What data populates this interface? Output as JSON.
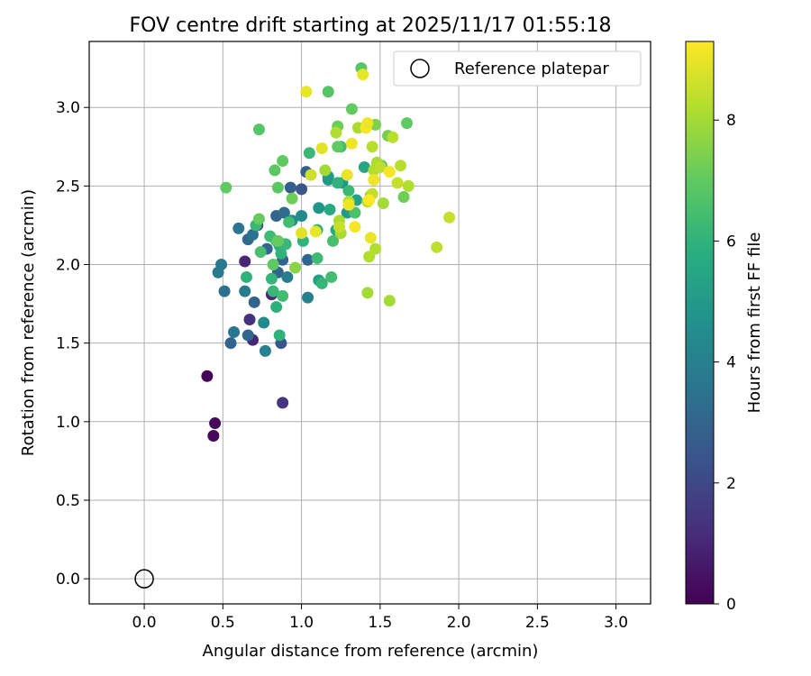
{
  "chart_data": {
    "type": "scatter",
    "title": "FOV centre drift starting at 2025/11/17 01:55:18",
    "xlabel": "Angular distance from reference (arcmin)",
    "ylabel": "Rotation from reference (arcmin)",
    "xlim": [
      -0.35,
      3.22
    ],
    "ylim": [
      -0.16,
      3.42
    ],
    "xticks": [
      0.0,
      0.5,
      1.0,
      1.5,
      2.0,
      2.5,
      3.0
    ],
    "yticks": [
      0.0,
      0.5,
      1.0,
      1.5,
      2.0,
      2.5,
      3.0
    ],
    "xtick_labels": [
      "0.0",
      "0.5",
      "1.0",
      "1.5",
      "2.0",
      "2.5",
      "3.0"
    ],
    "ytick_labels": [
      "0.0",
      "0.5",
      "1.0",
      "1.5",
      "2.0",
      "2.5",
      "3.0"
    ],
    "grid": true,
    "legend": {
      "position": "upper-right",
      "entries": [
        "Reference platepar"
      ]
    },
    "reference": {
      "label": "Reference platepar",
      "x": 0.0,
      "y": 0.0,
      "marker": "open-circle"
    },
    "colorbar": {
      "label": "Hours from first FF file",
      "colormap": "viridis",
      "range": [
        0,
        9.3
      ],
      "ticks": [
        0,
        2,
        4,
        6,
        8
      ],
      "tick_labels": [
        "0",
        "2",
        "4",
        "6",
        "8"
      ]
    },
    "series": [
      {
        "x": [
          0.4,
          0.45,
          0.44,
          0.88,
          0.81,
          0.69,
          0.64
        ],
        "y": [
          1.29,
          0.99,
          0.91,
          1.12,
          1.81,
          1.52,
          2.02
        ],
        "hours": [
          0.1,
          0.2,
          0.2,
          1.4,
          1.0,
          1.0,
          1.0
        ]
      },
      {
        "x": [
          0.67,
          0.72,
          0.87,
          0.55,
          0.66,
          0.7,
          0.88,
          0.78,
          0.84,
          0.93,
          1.0,
          1.03,
          0.85,
          0.88
        ],
        "y": [
          1.65,
          2.25,
          1.5,
          1.5,
          1.55,
          1.76,
          2.03,
          2.1,
          2.31,
          2.49,
          2.48,
          2.59,
          1.95,
          2.13
        ],
        "hours": [
          1.3,
          1.8,
          2.5,
          3.0,
          3.0,
          3.0,
          3.0,
          3.0,
          3.0,
          2.8,
          2.5,
          2.8,
          3.0,
          3.0
        ]
      },
      {
        "x": [
          0.6,
          0.66,
          0.69,
          0.47,
          0.49,
          0.51,
          0.57,
          0.64,
          0.77,
          0.91,
          1.04,
          1.04,
          1.0,
          0.89,
          0.94,
          0.76
        ],
        "y": [
          2.23,
          2.16,
          2.19,
          1.95,
          2.0,
          1.83,
          1.57,
          1.83,
          1.45,
          1.92,
          1.79,
          2.03,
          2.31,
          2.33,
          2.28,
          1.63
        ],
        "hours": [
          3.6,
          3.2,
          3.5,
          3.8,
          3.7,
          3.5,
          3.6,
          3.8,
          4.0,
          3.9,
          4.0,
          3.1,
          4.3,
          3.3,
          4.5,
          4.4
        ]
      },
      {
        "x": [
          1.11,
          1.17,
          1.26,
          1.29,
          1.4,
          1.35,
          1.11,
          1.17,
          1.22,
          1.18,
          1.1,
          0.84
        ],
        "y": [
          2.36,
          2.56,
          2.52,
          2.33,
          2.62,
          2.41,
          1.9,
          2.54,
          2.22,
          2.35,
          2.22,
          1.73
        ],
        "hours": [
          4.8,
          4.9,
          4.8,
          5.0,
          5.4,
          5.3,
          5.2,
          5.0,
          5.6,
          5.6,
          5.8,
          5.9
        ]
      },
      {
        "x": [
          0.65,
          0.71,
          0.74,
          0.8,
          0.81,
          0.84,
          0.86,
          0.87,
          0.88,
          0.9,
          1.01,
          1.05,
          1.1,
          1.13,
          1.19,
          1.2,
          1.25,
          1.3,
          1.34,
          1.23,
          0.86,
          0.82,
          0.92
        ],
        "y": [
          1.92,
          2.25,
          2.08,
          2.18,
          1.91,
          2.15,
          2.12,
          2.07,
          1.8,
          2.13,
          2.15,
          2.71,
          2.04,
          1.88,
          1.92,
          2.15,
          2.75,
          2.47,
          2.33,
          2.52,
          1.55,
          1.83,
          2.27
        ],
        "hours": [
          6.0,
          6.2,
          6.5,
          6.3,
          6.1,
          6.5,
          5.9,
          6.0,
          6.4,
          6.2,
          6.0,
          6.2,
          6.3,
          6.1,
          6.4,
          6.5,
          6.4,
          6.2,
          6.6,
          6.0,
          6.0,
          6.2,
          6.4
        ]
      },
      {
        "x": [
          0.52,
          0.73,
          0.73,
          0.83,
          0.85,
          0.88,
          0.94,
          1.17,
          1.32,
          1.38,
          1.47,
          1.67,
          1.65,
          1.55,
          1.44,
          1.23,
          1.23,
          0.82,
          0.85,
          0.96,
          1.51
        ],
        "y": [
          2.49,
          2.86,
          2.29,
          2.6,
          2.49,
          2.66,
          2.42,
          3.1,
          2.99,
          3.25,
          2.89,
          2.9,
          2.43,
          2.82,
          2.44,
          2.75,
          2.88,
          2.0,
          2.15,
          1.98,
          2.63
        ],
        "hours": [
          7.0,
          6.8,
          7.1,
          6.9,
          6.9,
          7.0,
          7.2,
          6.8,
          7.0,
          6.8,
          7.4,
          7.0,
          7.2,
          7.3,
          7.5,
          7.0,
          7.2,
          7.0,
          7.1,
          7.6,
          7.2
        ]
      },
      {
        "x": [
          1.15,
          1.22,
          1.24,
          1.25,
          1.3,
          1.36,
          1.42,
          1.43,
          1.45,
          1.46,
          1.47,
          1.48,
          1.5,
          1.52,
          1.58,
          1.61,
          1.63,
          1.68,
          1.86,
          1.94,
          1.56,
          1.42,
          1.45,
          1.24,
          1.06
        ],
        "y": [
          2.6,
          2.84,
          2.28,
          2.2,
          2.4,
          2.87,
          1.82,
          2.05,
          2.75,
          2.6,
          2.1,
          2.65,
          2.62,
          2.39,
          2.81,
          2.52,
          2.63,
          2.5,
          2.11,
          2.3,
          1.77,
          2.4,
          2.45,
          2.24,
          2.57
        ],
        "hours": [
          8.0,
          8.2,
          8.1,
          8.1,
          8.3,
          8.1,
          8.0,
          8.2,
          8.3,
          8.2,
          8.2,
          8.1,
          8.4,
          8.0,
          8.3,
          8.5,
          8.3,
          8.2,
          8.4,
          8.5,
          8.0,
          8.3,
          8.4,
          8.5,
          8.6
        ]
      },
      {
        "x": [
          1.03,
          1.13,
          1.29,
          1.32,
          1.39,
          1.41,
          1.42,
          1.46,
          1.56,
          1.44,
          1.0,
          1.09,
          1.3,
          1.34,
          1.43
        ],
        "y": [
          3.1,
          2.74,
          2.57,
          2.77,
          3.21,
          2.87,
          2.9,
          2.54,
          2.59,
          2.17,
          2.2,
          2.21,
          2.38,
          2.24,
          2.41
        ],
        "hours": [
          9.0,
          8.9,
          9.0,
          9.1,
          9.0,
          9.2,
          9.1,
          9.1,
          9.2,
          9.0,
          8.9,
          9.0,
          9.1,
          9.2,
          9.3
        ]
      }
    ]
  }
}
